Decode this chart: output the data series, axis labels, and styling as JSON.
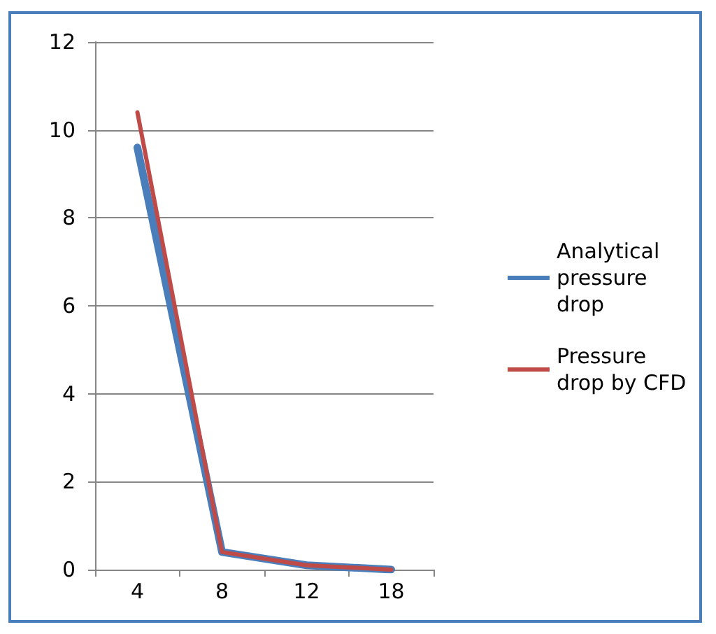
{
  "chart_data": {
    "type": "line",
    "categories": [
      "4",
      "8",
      "12",
      "18"
    ],
    "series": [
      {
        "name": "Analytical pressure drop",
        "color": "#4a7ebb",
        "values": [
          9.6,
          0.4,
          0.1,
          0.0
        ]
      },
      {
        "name": "Pressure drop by CFD",
        "color": "#be4b48",
        "values": [
          10.4,
          0.4,
          0.1,
          0.0
        ]
      }
    ],
    "ylim": [
      0,
      12
    ],
    "yticks": [
      0,
      2,
      4,
      6,
      8,
      10,
      12
    ],
    "grid": "y",
    "legend": "right",
    "marker": "none",
    "line_style": "solid"
  }
}
